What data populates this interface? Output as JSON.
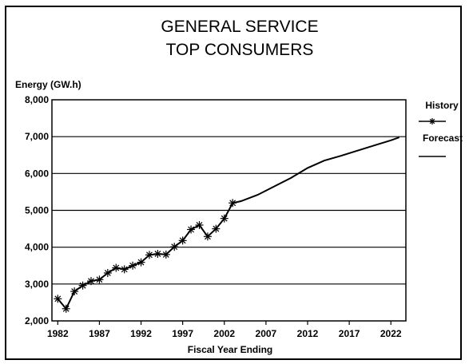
{
  "chart_data": {
    "type": "line",
    "title": [
      "GENERAL SERVICE",
      "TOP CONSUMERS"
    ],
    "ylabel": "Energy (GW.h)",
    "xlabel": "Fiscal Year Ending",
    "ylim": [
      2000,
      8000
    ],
    "xlim": [
      1981.3,
      2023.8
    ],
    "y_ticks": [
      2000,
      3000,
      4000,
      5000,
      6000,
      7000,
      8000
    ],
    "y_tick_labels": [
      "2,000",
      "3,000",
      "4,000",
      "5,000",
      "6,000",
      "7,000",
      "8,000"
    ],
    "x_ticks": [
      1982,
      1987,
      1992,
      1997,
      2002,
      2007,
      2012,
      2017,
      2022
    ],
    "x_tick_labels": [
      "1982",
      "1987",
      "1992",
      "1997",
      "2002",
      "2007",
      "2012",
      "2017",
      "2022"
    ],
    "grid": "horizontal",
    "legend_position": "right",
    "series": [
      {
        "name": "History",
        "marker": "asterisk",
        "x": [
          1982,
          1983,
          1984,
          1985,
          1986,
          1987,
          1988,
          1989,
          1990,
          1991,
          1992,
          1993,
          1994,
          1995,
          1996,
          1997,
          1998,
          1999,
          2000,
          2001,
          2002,
          2003
        ],
        "y": [
          2600,
          2330,
          2800,
          2960,
          3080,
          3120,
          3300,
          3440,
          3400,
          3500,
          3590,
          3790,
          3820,
          3800,
          4010,
          4180,
          4480,
          4600,
          4290,
          4500,
          4780,
          5200
        ]
      },
      {
        "name": "Forecast",
        "marker": "none",
        "x": [
          2003,
          2004,
          2006,
          2008,
          2010,
          2012,
          2014,
          2016,
          2018,
          2020,
          2022,
          2023
        ],
        "y": [
          5200,
          5250,
          5420,
          5650,
          5880,
          6150,
          6350,
          6480,
          6620,
          6760,
          6900,
          6980
        ]
      }
    ]
  }
}
